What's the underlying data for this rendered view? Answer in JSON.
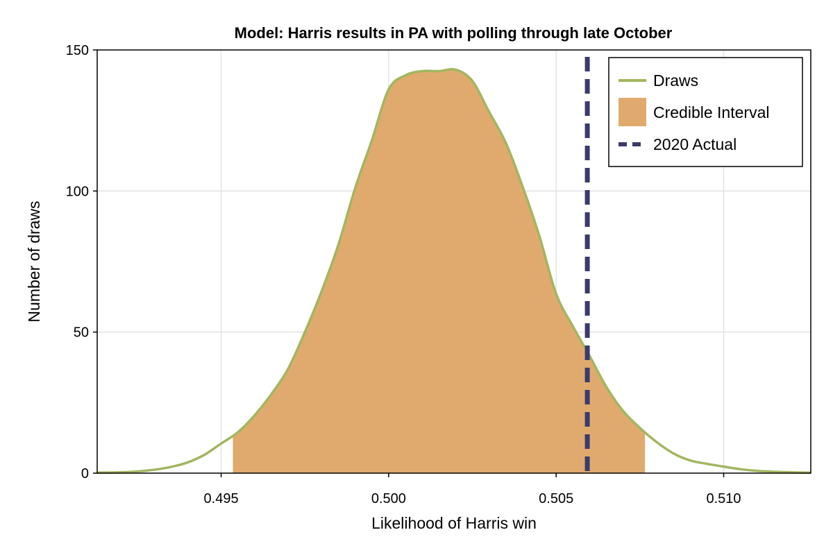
{
  "chart_data": {
    "type": "area",
    "title": "Model: Harris results in PA with polling through late October",
    "xlabel": "Likelihood of Harris win",
    "ylabel": "Number of draws",
    "xlim": [
      0.4913,
      0.5126
    ],
    "ylim": [
      0,
      150
    ],
    "x_ticks": [
      0.495,
      0.5,
      0.505,
      0.51
    ],
    "x_tick_labels": [
      "0.495",
      "0.500",
      "0.505",
      "0.510"
    ],
    "y_ticks": [
      0,
      50,
      100,
      150
    ],
    "y_tick_labels": [
      "0",
      "50",
      "100",
      "150"
    ],
    "grid": true,
    "legend_position": "top-right",
    "colors": {
      "draws": "#a2b660",
      "credible_interval": "#e0aa6e",
      "actual_2020": "#3b3b6b"
    },
    "series": [
      {
        "name": "Draws",
        "kind": "line",
        "x": [
          0.4913,
          0.492,
          0.4925,
          0.493,
          0.4935,
          0.494,
          0.4945,
          0.495,
          0.4955,
          0.496,
          0.4965,
          0.497,
          0.4975,
          0.498,
          0.4985,
          0.499,
          0.4995,
          0.5,
          0.5005,
          0.501,
          0.5015,
          0.502,
          0.5025,
          0.503,
          0.5035,
          0.504,
          0.5045,
          0.505,
          0.5055,
          0.506,
          0.5065,
          0.507,
          0.5075,
          0.508,
          0.5085,
          0.509,
          0.5095,
          0.51,
          0.5105,
          0.511,
          0.5115,
          0.512,
          0.5126
        ],
        "y": [
          0.2,
          0.3,
          0.6,
          1.2,
          2.2,
          3.8,
          6.5,
          10.5,
          14.5,
          20.5,
          28.0,
          37.0,
          50.0,
          64.5,
          81.0,
          101.0,
          118.0,
          136.0,
          141.0,
          142.5,
          142.5,
          143.0,
          139.0,
          128.0,
          117.0,
          101.5,
          84.0,
          63.5,
          52.0,
          41.5,
          30.5,
          22.0,
          16.0,
          11.0,
          7.0,
          4.5,
          3.3,
          2.3,
          1.4,
          0.8,
          0.5,
          0.3,
          0.2
        ]
      },
      {
        "name": "Credible Interval",
        "kind": "band",
        "x_range": [
          0.49535,
          0.50765
        ]
      },
      {
        "name": "2020 Actual",
        "kind": "vline",
        "x": 0.50593
      }
    ]
  }
}
